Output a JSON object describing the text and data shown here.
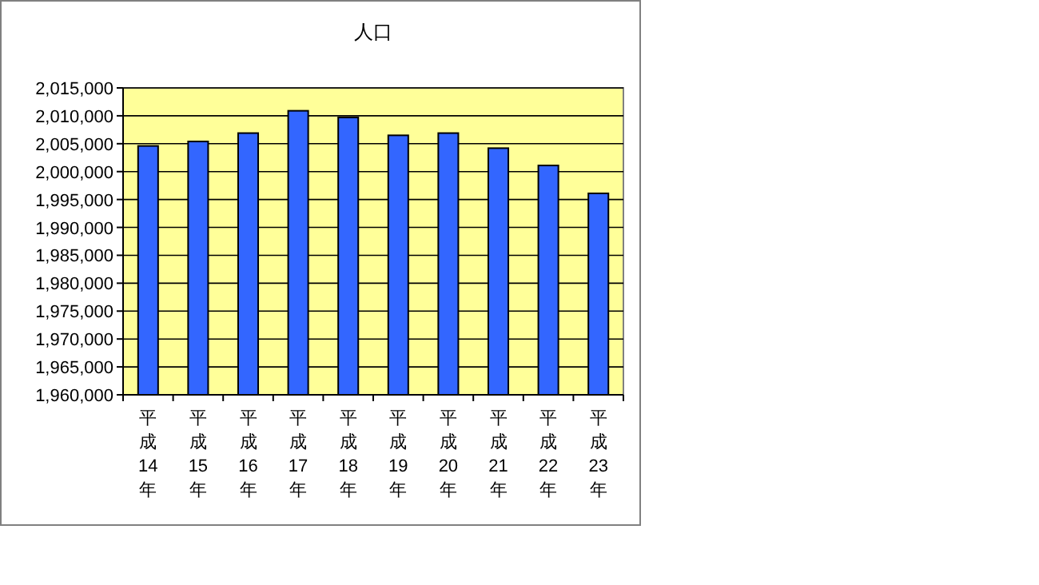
{
  "chart_data": {
    "type": "bar",
    "title": "人口",
    "categories": [
      "平成14年",
      "平成15年",
      "平成16年",
      "平成17年",
      "平成18年",
      "平成19年",
      "平成20年",
      "平成21年",
      "平成22年",
      "平成23年"
    ],
    "values": [
      2004600,
      2005400,
      2006900,
      2010900,
      2009700,
      2006500,
      2006900,
      2004200,
      2001100,
      1996100
    ],
    "color": "#3366ff",
    "ylim": [
      1960000,
      2015000
    ],
    "yticks": [
      {
        "value": 1960000,
        "label": "1,960,000"
      },
      {
        "value": 1965000,
        "label": "1,965,000"
      },
      {
        "value": 1970000,
        "label": "1,970,000"
      },
      {
        "value": 1975000,
        "label": "1,975,000"
      },
      {
        "value": 1980000,
        "label": "1,980,000"
      },
      {
        "value": 1985000,
        "label": "1,985,000"
      },
      {
        "value": 1990000,
        "label": "1,990,000"
      },
      {
        "value": 1995000,
        "label": "1,995,000"
      },
      {
        "value": 2000000,
        "label": "2,000,000"
      },
      {
        "value": 2005000,
        "label": "2,005,000"
      },
      {
        "value": 2010000,
        "label": "2,010,000"
      },
      {
        "value": 2015000,
        "label": "2,015,000"
      }
    ],
    "grid": "y"
  }
}
